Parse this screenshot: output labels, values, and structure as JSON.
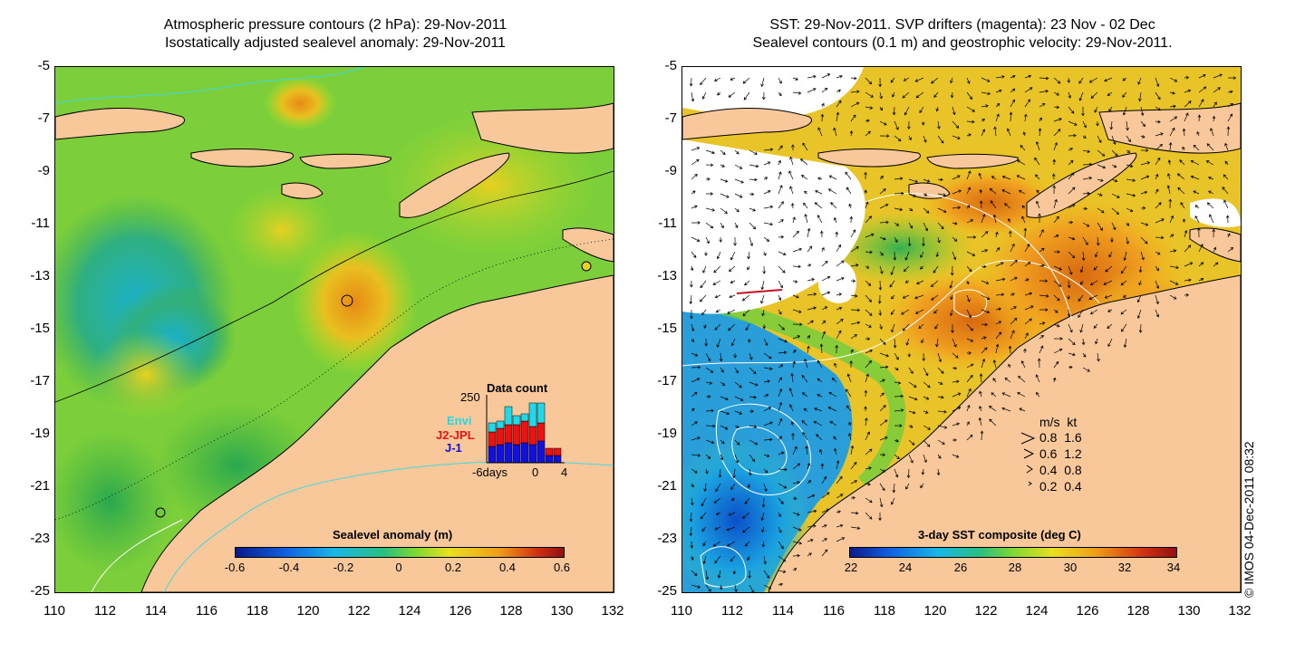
{
  "left_panel": {
    "title_line1": "Atmospheric pressure contours (2 hPa): 29-Nov-2011",
    "title_line2": "Isostatically adjusted sealevel anomaly: 29-Nov-2011",
    "colorbar": {
      "title": "Sealevel anomaly (m)",
      "ticks": [
        "-0.6",
        "-0.4",
        "-0.2",
        "0",
        "0.2",
        "0.4",
        "0.6"
      ]
    },
    "data_count": {
      "title": "Data count",
      "y_max_label": "250",
      "series_labels": [
        "Envi",
        "J2-JPL",
        "J-1"
      ],
      "series_colors": [
        "#22d8e8",
        "#ee1111",
        "#1111dd"
      ],
      "x_labels": [
        "-6days",
        "0",
        "4"
      ]
    }
  },
  "right_panel": {
    "title_line1": "SST: 29-Nov-2011. SVP drifters (magenta): 23 Nov - 02 Dec",
    "title_line2": "Sealevel contours (0.1 m) and geostrophic velocity: 29-Nov-2011.",
    "colorbar": {
      "title": "3-day SST composite (deg C)",
      "ticks": [
        "22",
        "24",
        "26",
        "28",
        "30",
        "32",
        "34"
      ]
    },
    "velocity_legend": {
      "header": "m/s  kt",
      "rows": [
        "0.8  1.6",
        "0.6  1.2",
        "0.4  0.8",
        "0.2  0.4"
      ]
    }
  },
  "axes": {
    "y_ticks": [
      "-5",
      "-7",
      "-9",
      "-11",
      "-13",
      "-15",
      "-17",
      "-19",
      "-21",
      "-23",
      "-25"
    ],
    "x_ticks": [
      "110",
      "112",
      "114",
      "116",
      "118",
      "120",
      "122",
      "124",
      "126",
      "128",
      "130",
      "132"
    ]
  },
  "credit": "© IMOS 04-Dec-2011 08:32",
  "colors": {
    "land": "#f8c89a",
    "ocean_low": "#1f9aa0",
    "ocean_mid": "#7fd23a",
    "ocean_high": "#e08a1a",
    "white_cloud": "#ffffff"
  }
}
